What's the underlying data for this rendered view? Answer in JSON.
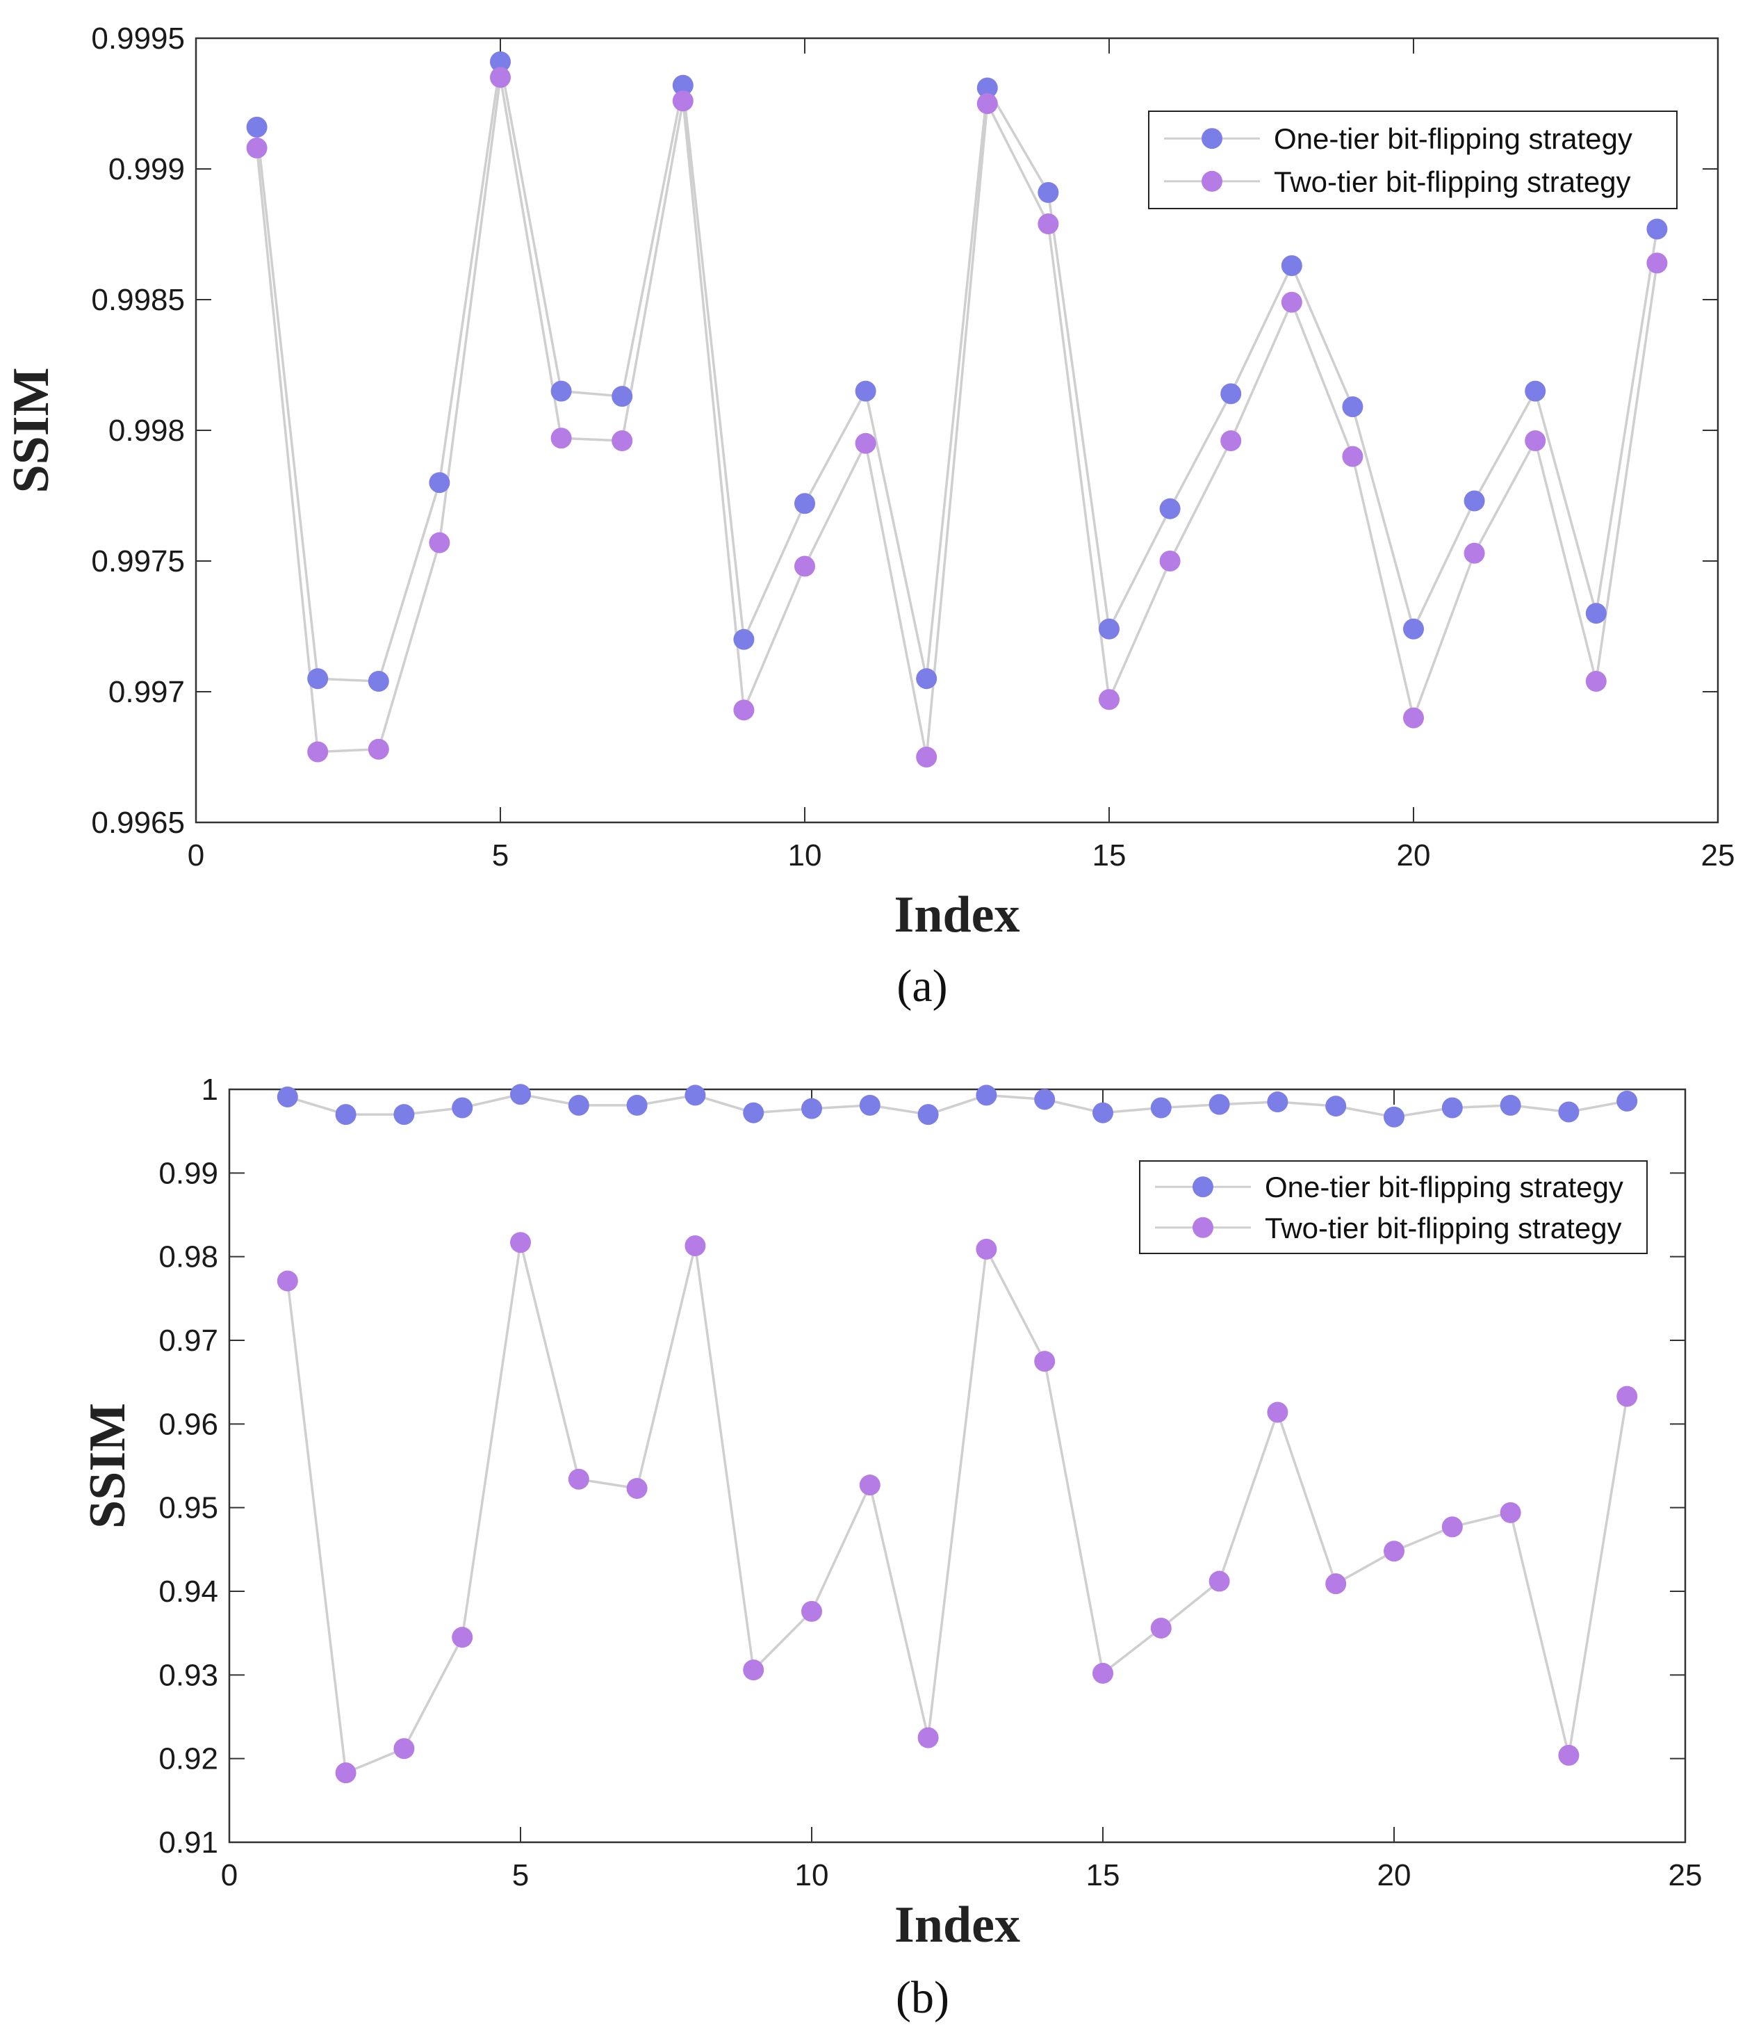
{
  "chart_data": [
    {
      "type": "line",
      "caption": "(a)",
      "title": "",
      "xlabel": "Index",
      "ylabel": "SSIM",
      "xlim": [
        0,
        25
      ],
      "ylim": [
        0.9965,
        0.9995
      ],
      "xticks": [
        0,
        5,
        10,
        15,
        20,
        25
      ],
      "xtick_labels": [
        "0",
        "5",
        "10",
        "15",
        "20",
        "25"
      ],
      "yticks": [
        0.9965,
        0.997,
        0.9975,
        0.998,
        0.9985,
        0.999,
        0.9995
      ],
      "ytick_labels": [
        "0.9965",
        "0.997",
        "0.9975",
        "0.998",
        "0.9985",
        "0.999",
        "0.9995"
      ],
      "grid": false,
      "legend_position": "top-right",
      "x": [
        1,
        2,
        3,
        4,
        5,
        6,
        7,
        8,
        9,
        10,
        11,
        12,
        13,
        14,
        15,
        16,
        17,
        18,
        19,
        20,
        21,
        22,
        23,
        24
      ],
      "series": [
        {
          "name": "One-tier bit-flipping strategy",
          "color": "#7b7ee6",
          "values": [
            0.99916,
            0.99705,
            0.99704,
            0.9978,
            0.99941,
            0.99815,
            0.99813,
            0.99932,
            0.9972,
            0.99772,
            0.99815,
            0.99705,
            0.99931,
            0.99891,
            0.99724,
            0.9977,
            0.99814,
            0.99863,
            0.99809,
            0.99724,
            0.99773,
            0.99815,
            0.9973,
            0.99877
          ]
        },
        {
          "name": "Two-tier bit-flipping strategy",
          "color": "#b57ce6",
          "values": [
            0.99908,
            0.99677,
            0.99678,
            0.99757,
            0.99935,
            0.99797,
            0.99796,
            0.99926,
            0.99693,
            0.99748,
            0.99795,
            0.99675,
            0.99925,
            0.99879,
            0.99697,
            0.9975,
            0.99796,
            0.99849,
            0.9979,
            0.9969,
            0.99753,
            0.99796,
            0.99704,
            0.99864
          ]
        }
      ]
    },
    {
      "type": "line",
      "caption": "(b)",
      "title": "",
      "xlabel": "Index",
      "ylabel": "SSIM",
      "xlim": [
        0,
        25
      ],
      "ylim": [
        0.91,
        1.0
      ],
      "xticks": [
        0,
        5,
        10,
        15,
        20,
        25
      ],
      "xtick_labels": [
        "0",
        "5",
        "10",
        "15",
        "20",
        "25"
      ],
      "yticks": [
        0.91,
        0.92,
        0.93,
        0.94,
        0.95,
        0.96,
        0.97,
        0.98,
        0.99,
        1.0
      ],
      "ytick_labels": [
        "0.91",
        "0.92",
        "0.93",
        "0.94",
        "0.95",
        "0.96",
        "0.97",
        "0.98",
        "0.99",
        "1"
      ],
      "grid": false,
      "legend_position": "top-right",
      "x": [
        1,
        2,
        3,
        4,
        5,
        6,
        7,
        8,
        9,
        10,
        11,
        12,
        13,
        14,
        15,
        16,
        17,
        18,
        19,
        20,
        21,
        22,
        23,
        24
      ],
      "series": [
        {
          "name": "One-tier bit-flipping strategy",
          "color": "#7b7ee6",
          "values": [
            0.9991,
            0.997,
            0.997,
            0.9978,
            0.9994,
            0.9981,
            0.9981,
            0.9993,
            0.9972,
            0.9977,
            0.9981,
            0.997,
            0.9993,
            0.9988,
            0.9972,
            0.9978,
            0.9982,
            0.9985,
            0.998,
            0.9967,
            0.9978,
            0.9981,
            0.9973,
            0.9986
          ]
        },
        {
          "name": "Two-tier bit-flipping strategy",
          "color": "#b57ce6",
          "values": [
            0.9771,
            0.9183,
            0.9212,
            0.9345,
            0.9817,
            0.9534,
            0.9523,
            0.9813,
            0.9306,
            0.9376,
            0.9527,
            0.9225,
            0.9809,
            0.9675,
            0.9302,
            0.9356,
            0.9412,
            0.9614,
            0.9409,
            0.9448,
            0.9477,
            0.9494,
            0.9204,
            0.9633
          ]
        }
      ]
    }
  ]
}
